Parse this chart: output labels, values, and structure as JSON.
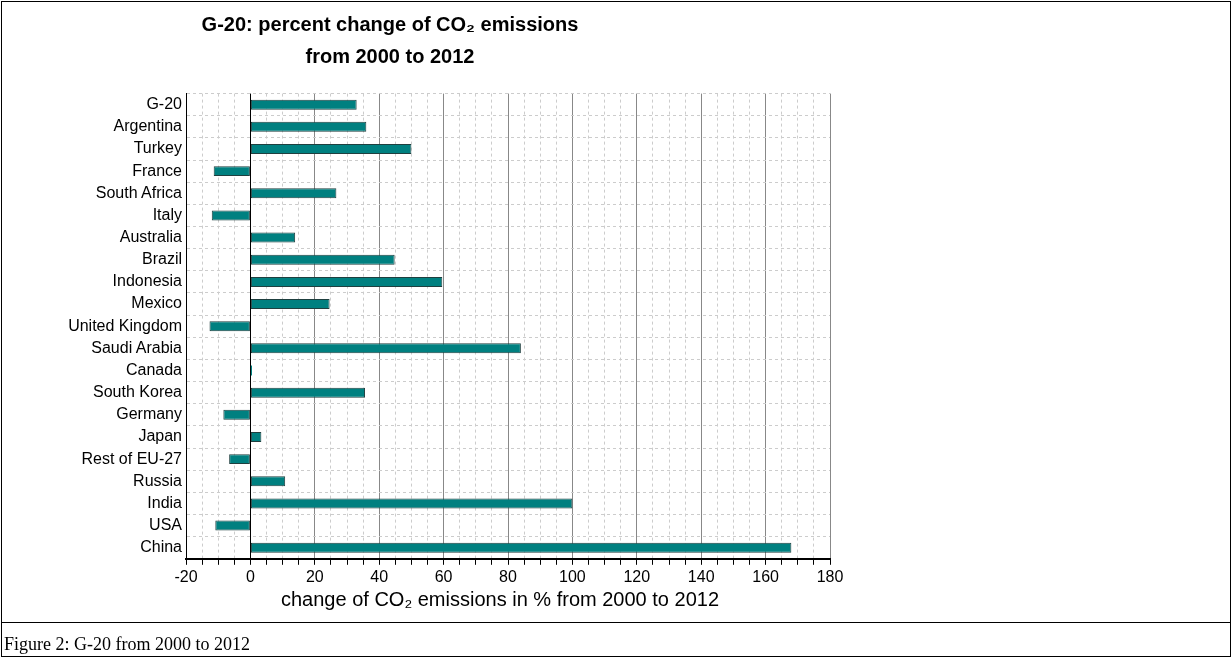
{
  "chart_data": {
    "type": "bar",
    "orientation": "horizontal",
    "title": "G-20: percent change of CO₂ emissions from 2000 to 2012",
    "xlabel": "change of CO₂ emissions in % from 2000 to 2012",
    "categories": [
      "G-20",
      "Argentina",
      "Turkey",
      "France",
      "South Africa",
      "Italy",
      "Australia",
      "Brazil",
      "Indonesia",
      "Mexico",
      "United Kingdom",
      "Saudi Arabia",
      "Canada",
      "South Korea",
      "Germany",
      "Japan",
      "Rest of EU-27",
      "Russia",
      "India",
      "USA",
      "China"
    ],
    "values": [
      33,
      36,
      50,
      -11.4,
      26.7,
      -12,
      13.9,
      44.8,
      59.6,
      24.6,
      -12.7,
      84,
      0.5,
      35.6,
      -8.4,
      3.4,
      -6.6,
      10.8,
      100,
      -10.9,
      168
    ],
    "color": "#008080",
    "xlim": [
      -20,
      180
    ],
    "xticks": [
      -20,
      {
        "value": -15,
        "label": null
      },
      {
        "value": -10,
        "label": null
      },
      {
        "value": -5,
        "label": null
      },
      0,
      {
        "value": 5,
        "label": null
      },
      {
        "value": 10,
        "label": null
      },
      {
        "value": 15,
        "label": null
      },
      20,
      {
        "value": 25,
        "label": null
      },
      {
        "value": 30,
        "label": null
      },
      {
        "value": 35,
        "label": null
      },
      40,
      {
        "value": 45,
        "label": null
      },
      {
        "value": 50,
        "label": null
      },
      {
        "value": 55,
        "label": null
      },
      60,
      {
        "value": 65,
        "label": null
      },
      {
        "value": 70,
        "label": null
      },
      {
        "value": 75,
        "label": null
      },
      80,
      {
        "value": 85,
        "label": null
      },
      {
        "value": 90,
        "label": null
      },
      {
        "value": 95,
        "label": null
      },
      100,
      {
        "value": 105,
        "label": null
      },
      {
        "value": 110,
        "label": null
      },
      {
        "value": 115,
        "label": null
      },
      120,
      {
        "value": 125,
        "label": null
      },
      {
        "value": 130,
        "label": null
      },
      {
        "value": 135,
        "label": null
      },
      140,
      {
        "value": 145,
        "label": null
      },
      {
        "value": 150,
        "label": null
      },
      {
        "value": 155,
        "label": null
      },
      160,
      {
        "value": 165,
        "label": null
      },
      {
        "value": 170,
        "label": null
      },
      {
        "value": 175,
        "label": null
      },
      180
    ],
    "grid": true,
    "annotations": [
      "Figure 2:  G-20 from 2000 to 2012"
    ]
  }
}
